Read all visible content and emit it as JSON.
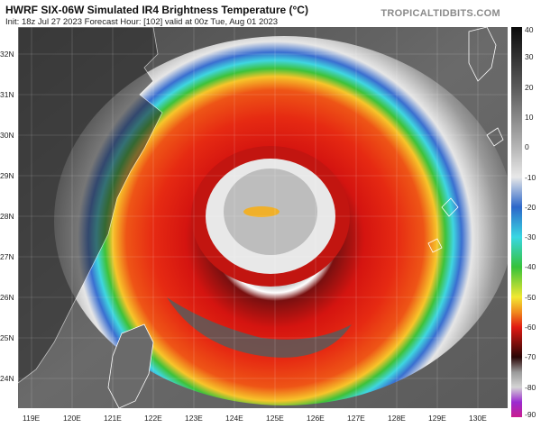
{
  "header": {
    "title": "HWRF SIX-06W Simulated IR4 Brightness Temperature (°C)",
    "subtitle": "Init: 18z Jul 27 2023   Forecast Hour: [102]   valid at 00z Tue, Aug 01 2023",
    "brand": "TROPICALTIDBITS.COM"
  },
  "map": {
    "latitude_labels": [
      "32N",
      "31N",
      "30N",
      "29N",
      "28N",
      "27N",
      "26N",
      "25N",
      "24N"
    ],
    "longitude_labels": [
      "119E",
      "120E",
      "121E",
      "122E",
      "123E",
      "124E",
      "125E",
      "126E",
      "127E",
      "128E",
      "129E",
      "130E"
    ],
    "features": [
      "typhoon-eye",
      "mainland-china-coast",
      "taiwan",
      "ryukyu-islands"
    ]
  },
  "colorbar": {
    "unit": "°C",
    "tick_labels": [
      "40",
      "30",
      "20",
      "10",
      "0",
      "-10",
      "-20",
      "-30",
      "-40",
      "-50",
      "-60",
      "-70",
      "-80",
      "-90"
    ],
    "gradient_stops": [
      {
        "value": 40,
        "color": "#0a0a0a"
      },
      {
        "value": 20,
        "color": "#5a5a5a"
      },
      {
        "value": 0,
        "color": "#b5b5b5"
      },
      {
        "value": -10,
        "color": "#e8e8e8"
      },
      {
        "value": -20,
        "color": "#2d67c9"
      },
      {
        "value": -30,
        "color": "#38d7e3"
      },
      {
        "value": -40,
        "color": "#36c23a"
      },
      {
        "value": -50,
        "color": "#f2e832"
      },
      {
        "value": -55,
        "color": "#f08a1e"
      },
      {
        "value": -60,
        "color": "#e11a12"
      },
      {
        "value": -70,
        "color": "#2a0606"
      },
      {
        "value": -75,
        "color": "#9a9a9a"
      },
      {
        "value": -80,
        "color": "#d4d4d4"
      },
      {
        "value": -85,
        "color": "#9b2bd0"
      },
      {
        "value": -90,
        "color": "#c91d8f"
      }
    ]
  }
}
